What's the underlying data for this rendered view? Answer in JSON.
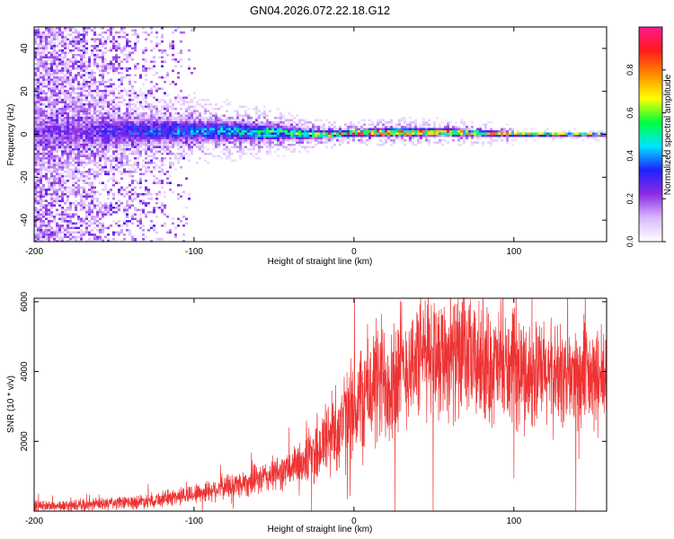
{
  "figure_title": "GN04.2026.072.22.18.G12",
  "chart_data": [
    {
      "type": "heatmap",
      "title": "GN04.2026.072.22.18.G12",
      "xlabel": "Height of straight line (km)",
      "ylabel": "Frequency (Hz)",
      "xlim": [
        -200,
        158
      ],
      "ylim": [
        -50,
        50
      ],
      "xticks": [
        -200,
        -100,
        0,
        100
      ],
      "yticks": [
        -40,
        -20,
        0,
        20,
        40
      ],
      "colorbar": {
        "label": "Normalized spectral amplitude",
        "range": [
          0,
          1
        ],
        "ticks": [
          "0.0",
          "0.2",
          "0.4",
          "0.6",
          "0.8"
        ],
        "colormap": [
          "#ffffff",
          "#d9b8ff",
          "#8a2be2",
          "#1e22ff",
          "#00e5ff",
          "#00ff3c",
          "#ffff00",
          "#ff8c00",
          "#ff1a1a",
          "#ff1a8c"
        ]
      },
      "ridge": [
        {
          "x": -170,
          "center": 1,
          "halfwidth": 7,
          "peak": 0.25
        },
        {
          "x": -140,
          "center": 1.5,
          "halfwidth": 6,
          "peak": 0.35
        },
        {
          "x": -110,
          "center": 1.5,
          "halfwidth": 5,
          "peak": 0.4
        },
        {
          "x": -80,
          "center": 1.5,
          "halfwidth": 4,
          "peak": 0.45
        },
        {
          "x": -60,
          "center": 1,
          "halfwidth": 3.5,
          "peak": 0.55
        },
        {
          "x": -40,
          "center": 0.5,
          "halfwidth": 2.5,
          "peak": 0.6
        },
        {
          "x": -20,
          "center": 0,
          "halfwidth": 1.5,
          "peak": 0.75
        },
        {
          "x": 0,
          "center": 0.5,
          "halfwidth": 1.2,
          "peak": 0.9
        },
        {
          "x": 20,
          "center": 1,
          "halfwidth": 1.5,
          "peak": 0.9
        },
        {
          "x": 40,
          "center": 1,
          "halfwidth": 1.5,
          "peak": 0.85
        },
        {
          "x": 60,
          "center": 1,
          "halfwidth": 1.3,
          "peak": 0.88
        },
        {
          "x": 80,
          "center": 0.5,
          "halfwidth": 1,
          "peak": 0.85
        },
        {
          "x": 100,
          "center": 0,
          "halfwidth": 0.8,
          "peak": 0.8
        },
        {
          "x": 130,
          "center": 0,
          "halfwidth": 0.7,
          "peak": 0.8
        },
        {
          "x": 158,
          "center": 0,
          "halfwidth": 0.6,
          "peak": 0.82
        }
      ]
    },
    {
      "type": "line",
      "xlabel": "Height of straight line (km)",
      "ylabel": "SNR (10 * v/v)",
      "xlim": [
        -200,
        158
      ],
      "ylim": [
        0,
        6100
      ],
      "xticks": [
        -200,
        -100,
        0,
        100
      ],
      "yticks": [
        2000,
        4000,
        6000
      ],
      "color": "#ee3333",
      "x": [
        -200,
        -180,
        -160,
        -140,
        -120,
        -100,
        -80,
        -60,
        -40,
        -30,
        -20,
        -15,
        -10,
        -5,
        0,
        5,
        10,
        20,
        30,
        35,
        40,
        45,
        50,
        60,
        70,
        80,
        90,
        100,
        110,
        120,
        130,
        140,
        150,
        158
      ],
      "values": [
        150,
        150,
        200,
        250,
        350,
        500,
        700,
        900,
        1200,
        1500,
        1900,
        2200,
        2400,
        2600,
        2900,
        3200,
        3500,
        3800,
        4000,
        4200,
        4400,
        4500,
        4600,
        4450,
        4350,
        4200,
        4100,
        4000,
        3950,
        3900,
        3850,
        3800,
        3750,
        3700
      ]
    }
  ]
}
